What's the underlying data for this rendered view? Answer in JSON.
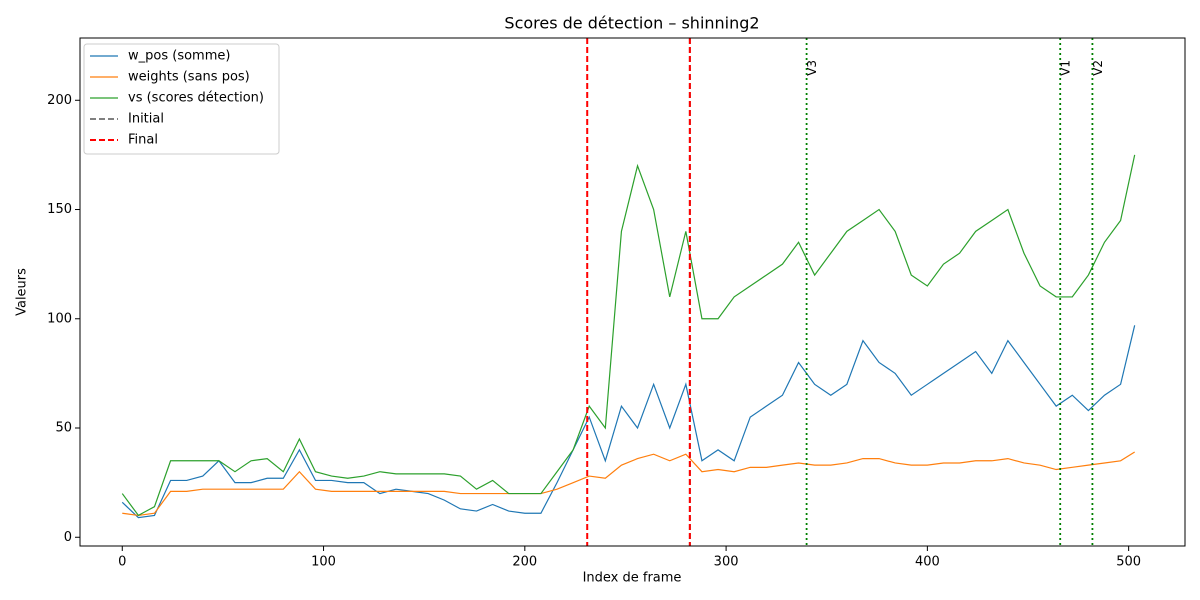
{
  "chart_data": {
    "type": "line",
    "title": "Scores de détection – shinning2",
    "x_label": "Index de frame",
    "y_label": "Valeurs",
    "x": [
      0,
      8,
      16,
      24,
      32,
      40,
      48,
      56,
      64,
      72,
      80,
      88,
      96,
      104,
      112,
      120,
      128,
      136,
      144,
      152,
      160,
      168,
      176,
      184,
      192,
      200,
      208,
      216,
      224,
      232,
      240,
      248,
      256,
      264,
      272,
      280,
      288,
      296,
      304,
      312,
      320,
      328,
      336,
      344,
      352,
      360,
      368,
      376,
      384,
      392,
      400,
      408,
      416,
      424,
      432,
      440,
      448,
      456,
      464,
      472,
      480,
      488,
      496,
      503
    ],
    "series": [
      {
        "name": "w_pos (somme)",
        "color": "#1f77b4",
        "values": [
          16,
          9,
          10,
          26,
          26,
          28,
          35,
          25,
          25,
          27,
          27,
          40,
          26,
          26,
          25,
          25,
          20,
          22,
          21,
          20,
          17,
          13,
          12,
          15,
          12,
          11,
          11,
          25,
          40,
          55,
          35,
          60,
          50,
          70,
          50,
          70,
          35,
          40,
          35,
          55,
          60,
          65,
          80,
          70,
          65,
          70,
          90,
          80,
          75,
          65,
          70,
          75,
          80,
          85,
          75,
          90,
          80,
          70,
          60,
          65,
          58,
          65,
          70,
          97
        ]
      },
      {
        "name": "weights (sans pos)",
        "color": "#ff7f0e",
        "values": [
          11,
          10,
          11,
          21,
          21,
          22,
          22,
          22,
          22,
          22,
          22,
          30,
          22,
          21,
          21,
          21,
          21,
          21,
          21,
          21,
          21,
          20,
          20,
          20,
          20,
          20,
          20,
          22,
          25,
          28,
          27,
          33,
          36,
          38,
          35,
          38,
          30,
          31,
          30,
          32,
          32,
          33,
          34,
          33,
          33,
          34,
          36,
          36,
          34,
          33,
          33,
          34,
          34,
          35,
          35,
          36,
          34,
          33,
          31,
          32,
          33,
          34,
          35,
          39
        ]
      },
      {
        "name": "vs (scores détection)",
        "color": "#2ca02c",
        "values": [
          20,
          10,
          14,
          35,
          35,
          35,
          35,
          30,
          35,
          36,
          30,
          45,
          30,
          28,
          27,
          28,
          30,
          29,
          29,
          29,
          29,
          28,
          22,
          26,
          20,
          20,
          20,
          30,
          40,
          60,
          50,
          140,
          170,
          150,
          110,
          140,
          100,
          100,
          110,
          115,
          120,
          125,
          135,
          120,
          130,
          140,
          145,
          150,
          140,
          120,
          115,
          125,
          130,
          140,
          145,
          150,
          130,
          115,
          110,
          110,
          120,
          135,
          145,
          175
        ]
      }
    ],
    "reference_lines": [
      {
        "name": "Initial",
        "color": "gray",
        "x": [
          282
        ]
      },
      {
        "name": "Final",
        "color": "red",
        "x": [
          231,
          282
        ]
      }
    ],
    "markers": [
      {
        "label": "V3",
        "x": 340,
        "color": "green"
      },
      {
        "label": "V1",
        "x": 466,
        "color": "green"
      },
      {
        "label": "V2",
        "x": 482,
        "color": "green"
      }
    ],
    "xlim": [
      -21,
      528
    ],
    "ylim": [
      -4,
      228.5
    ],
    "xticks": [
      0,
      100,
      200,
      300,
      400,
      500
    ],
    "yticks": [
      0,
      50,
      100,
      150,
      200
    ],
    "legend_position": "upper left"
  }
}
